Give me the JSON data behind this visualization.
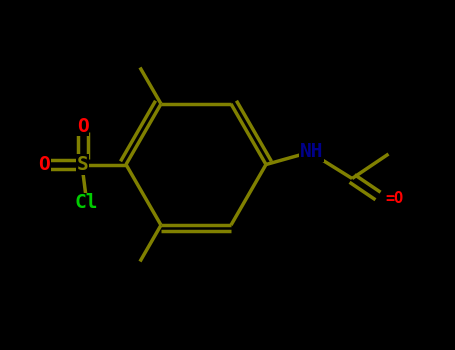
{
  "bg_color": "#000000",
  "bond_color": "#808000",
  "atom_colors": {
    "O": "#ff0000",
    "S": "#808000",
    "Cl": "#00cc00",
    "N": "#00008b",
    "C": "#808000"
  },
  "font_size_large": 14,
  "font_size_small": 11,
  "line_width": 2.5,
  "figsize": [
    4.55,
    3.5
  ],
  "dpi": 100,
  "xlim": [
    -3.0,
    3.5
  ],
  "ylim": [
    -2.5,
    2.5
  ]
}
